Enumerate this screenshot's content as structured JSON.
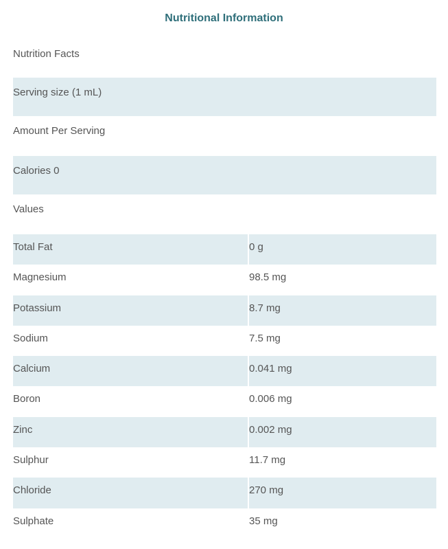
{
  "title": "Nutritional Information",
  "header_rows": [
    "Nutrition Facts",
    "Serving size (1 mL)",
    "Amount Per Serving",
    "Calories 0",
    "Values"
  ],
  "nutrients": [
    {
      "name": "Total Fat",
      "value": "0 g"
    },
    {
      "name": "Magnesium",
      "value": "98.5 mg"
    },
    {
      "name": "Potassium",
      "value": "8.7 mg"
    },
    {
      "name": "Sodium",
      "value": "7.5 mg"
    },
    {
      "name": "Calcium",
      "value": "0.041 mg"
    },
    {
      "name": "Boron",
      "value": "0.006 mg"
    },
    {
      "name": "Zinc",
      "value": "0.002 mg"
    },
    {
      "name": "Sulphur",
      "value": "11.7 mg"
    },
    {
      "name": "Chloride",
      "value": "270 mg"
    },
    {
      "name": "Sulphate",
      "value": "35 mg"
    }
  ],
  "colors": {
    "title": "#2f6f7a",
    "stripe": "#e0ecf0",
    "text": "#555555"
  }
}
